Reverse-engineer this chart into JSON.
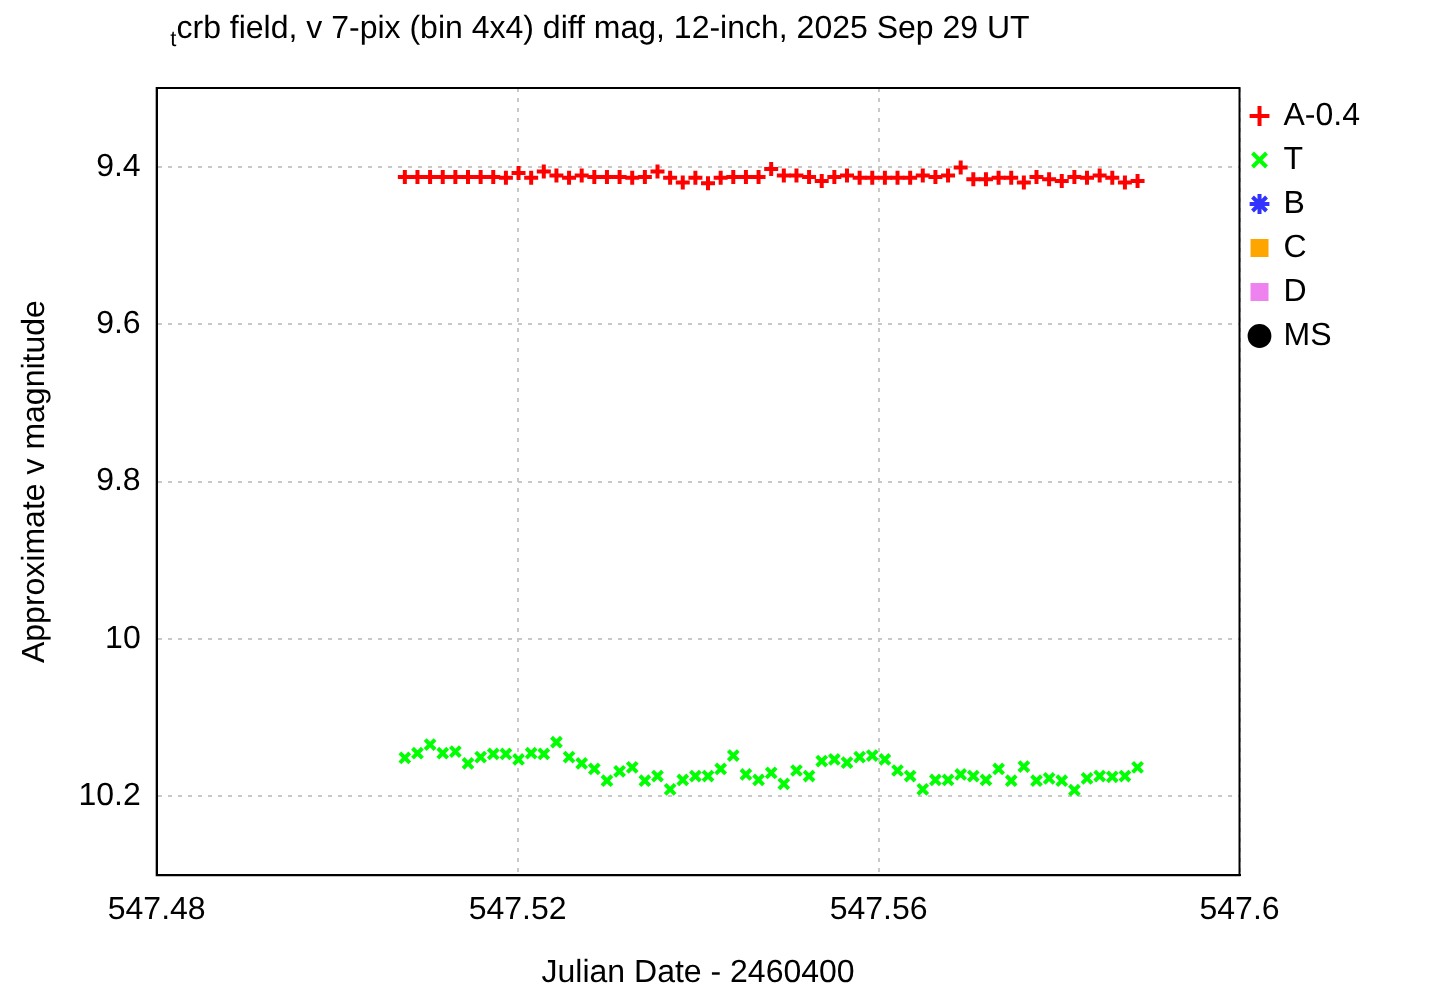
{
  "chart_data": {
    "type": "scatter",
    "title": "$_{t}$crb field, v 7-pix (bin 4x4) diff mag, 12-inch, 2025 Sep 29 UT",
    "xlabel": "Julian Date - 2460400",
    "ylabel": "Approximate v magnitude",
    "x": [
      547.5075,
      547.5089,
      547.5103,
      547.5117,
      547.5131,
      547.5145,
      547.5159,
      547.5173,
      547.5187,
      547.5201,
      547.5215,
      547.5229,
      547.5243,
      547.5257,
      547.5271,
      547.5285,
      547.5299,
      547.5313,
      547.5327,
      547.5341,
      547.5355,
      547.5369,
      547.5383,
      547.5397,
      547.5411,
      547.5425,
      547.5439,
      547.5453,
      547.5467,
      547.5481,
      547.5495,
      547.5509,
      547.5523,
      547.5537,
      547.5551,
      547.5565,
      547.5579,
      547.5593,
      547.5607,
      547.5621,
      547.5635,
      547.5649,
      547.5663,
      547.5677,
      547.5691,
      547.5705,
      547.5719,
      547.5733,
      547.5747,
      547.5761,
      547.5775,
      547.5789,
      547.5803,
      547.5817,
      547.5831,
      547.5845,
      547.5859,
      547.5873,
      547.5887
    ],
    "series": [
      {
        "name": "A-0.4",
        "color": "#ff0000",
        "marker": "cross",
        "values": [
          9.413,
          9.413,
          9.413,
          9.413,
          9.413,
          9.413,
          9.413,
          9.413,
          9.414,
          9.408,
          9.414,
          9.406,
          9.411,
          9.414,
          9.411,
          9.413,
          9.413,
          9.413,
          9.414,
          9.413,
          9.406,
          9.414,
          9.42,
          9.414,
          9.421,
          9.414,
          9.413,
          9.413,
          9.413,
          9.403,
          9.411,
          9.411,
          9.413,
          9.418,
          9.413,
          9.411,
          9.414,
          9.414,
          9.414,
          9.414,
          9.414,
          9.411,
          9.413,
          9.411,
          9.401,
          9.416,
          9.416,
          9.414,
          9.414,
          9.42,
          9.413,
          9.416,
          9.418,
          9.413,
          9.414,
          9.411,
          9.414,
          9.42,
          9.418
        ]
      },
      {
        "name": "T",
        "color": "#00ff00",
        "marker": "x",
        "values": [
          10.151,
          10.145,
          10.134,
          10.145,
          10.143,
          10.158,
          10.15,
          10.146,
          10.146,
          10.153,
          10.145,
          10.146,
          10.131,
          10.15,
          10.158,
          10.165,
          10.18,
          10.168,
          10.163,
          10.18,
          10.174,
          10.191,
          10.179,
          10.174,
          10.174,
          10.165,
          10.148,
          10.172,
          10.179,
          10.17,
          10.184,
          10.167,
          10.174,
          10.155,
          10.153,
          10.157,
          10.15,
          10.148,
          10.153,
          10.167,
          10.174,
          10.191,
          10.179,
          10.179,
          10.172,
          10.174,
          10.179,
          10.165,
          10.18,
          10.162,
          10.18,
          10.177,
          10.18,
          10.192,
          10.177,
          10.174,
          10.175,
          10.174,
          10.163
        ]
      },
      {
        "name": "B",
        "color": "#3333ff",
        "marker": "star",
        "values": [
          null,
          null,
          null,
          null,
          null,
          null,
          null,
          null,
          null,
          null,
          null,
          null,
          null,
          null,
          null,
          null,
          null,
          null,
          null,
          null,
          null,
          null,
          null,
          null,
          null,
          null,
          null,
          null,
          null,
          null,
          null,
          null,
          null,
          null,
          null,
          null,
          null,
          null,
          null,
          null,
          null,
          null,
          null,
          null,
          null,
          null,
          null,
          null,
          null,
          null,
          null,
          null,
          null,
          null,
          null,
          null,
          null,
          null,
          null
        ]
      },
      {
        "name": "C",
        "color": "#ffa500",
        "marker": "square",
        "values": [
          null,
          null,
          null,
          null,
          null,
          null,
          null,
          null,
          null,
          null,
          null,
          null,
          null,
          null,
          null,
          null,
          null,
          null,
          null,
          null,
          null,
          null,
          null,
          null,
          null,
          null,
          null,
          null,
          null,
          null,
          null,
          null,
          null,
          null,
          null,
          null,
          null,
          null,
          null,
          null,
          null,
          null,
          null,
          null,
          null,
          null,
          null,
          null,
          null,
          null,
          null,
          null,
          null,
          null,
          null,
          null,
          null,
          null,
          null
        ]
      },
      {
        "name": "D",
        "color": "#ee82ee",
        "marker": "square",
        "values": [
          null,
          null,
          null,
          null,
          null,
          null,
          null,
          null,
          null,
          null,
          null,
          null,
          null,
          null,
          null,
          null,
          null,
          null,
          null,
          null,
          null,
          null,
          null,
          null,
          null,
          null,
          null,
          null,
          null,
          null,
          null,
          null,
          null,
          null,
          null,
          null,
          null,
          null,
          null,
          null,
          null,
          null,
          null,
          null,
          null,
          null,
          null,
          null,
          null,
          null,
          null,
          null,
          null,
          null,
          null,
          null,
          null,
          null,
          null
        ]
      },
      {
        "name": "MS",
        "color": "#000000",
        "marker": "circle",
        "values": [
          null,
          null,
          null,
          null,
          null,
          null,
          null,
          null,
          null,
          null,
          null,
          null,
          null,
          null,
          null,
          null,
          null,
          null,
          null,
          null,
          null,
          null,
          null,
          null,
          null,
          null,
          null,
          null,
          null,
          null,
          null,
          null,
          null,
          null,
          null,
          null,
          null,
          null,
          null,
          null,
          null,
          null,
          null,
          null,
          null,
          null,
          null,
          null,
          null,
          null,
          null,
          null,
          null,
          null,
          null,
          null,
          null,
          null,
          null
        ]
      }
    ],
    "xlim": [
      547.48,
      547.6
    ],
    "xticks": [
      547.48,
      547.52,
      547.56,
      547.6
    ],
    "ylim": [
      10.3,
      9.3
    ],
    "yticks": [
      9.4,
      9.6,
      9.8,
      {
        "value": 10,
        "label": "10"
      },
      10.2
    ],
    "grid": true,
    "legend": "top right"
  }
}
